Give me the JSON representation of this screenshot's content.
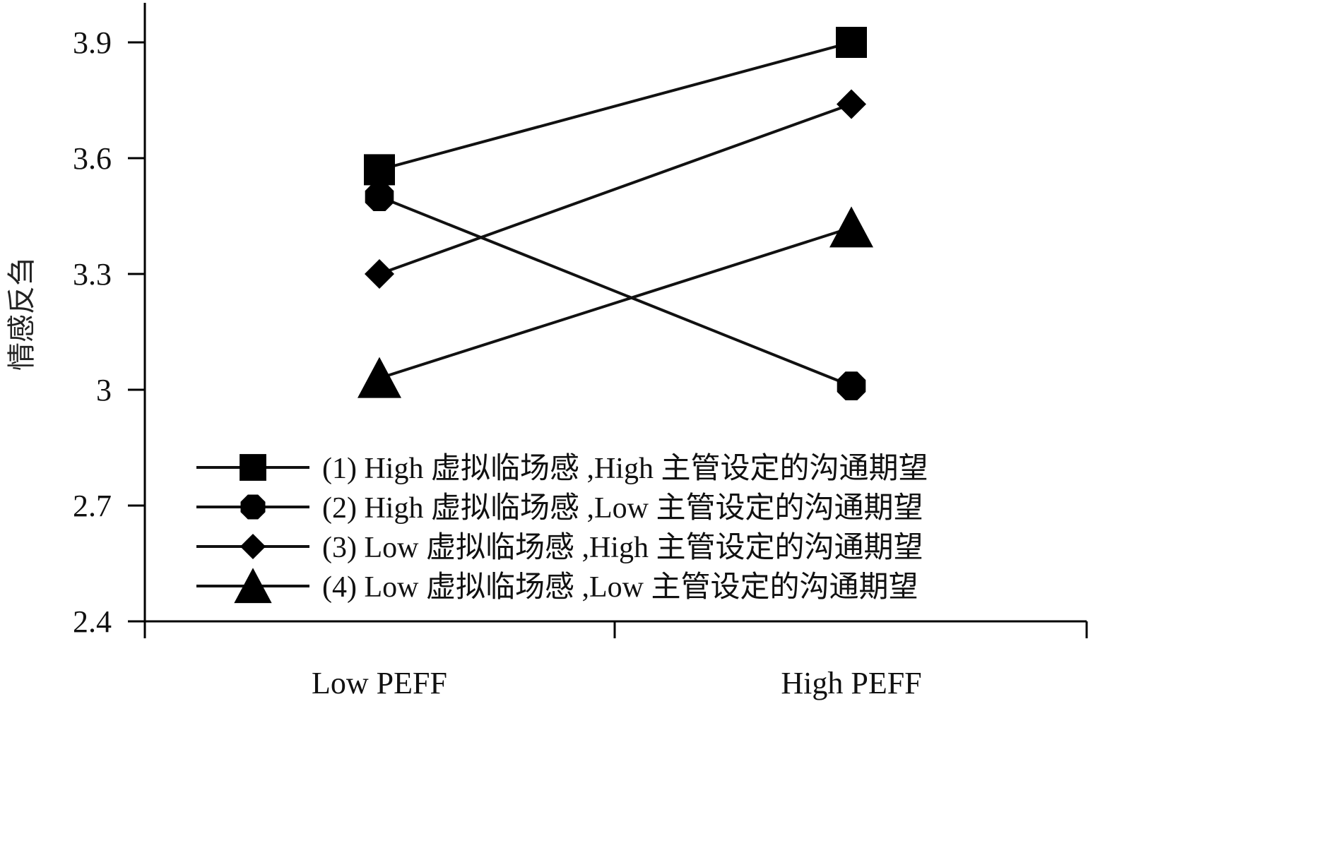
{
  "chart_data": {
    "type": "line",
    "title": "",
    "xlabel": "",
    "ylabel": "情感反刍",
    "categories": [
      "Low PEFF",
      "High PEFF"
    ],
    "y_ticks": [
      "2.4",
      "2.7",
      "3",
      "3.3",
      "3.6",
      "3.9"
    ],
    "ylim": [
      2.4,
      4.0
    ],
    "grid": false,
    "legend_position": "bottom-right",
    "series": [
      {
        "name": "(1) High 虚拟临场感 ,High 主管设定的沟通期望",
        "marker": "square",
        "values": [
          3.57,
          3.9
        ]
      },
      {
        "name": "(2) High 虚拟临场感 ,Low 主管设定的沟通期望",
        "marker": "octagon",
        "values": [
          3.5,
          3.01
        ]
      },
      {
        "name": "(3) Low 虚拟临场感 ,High 主管设定的沟通期望",
        "marker": "diamond",
        "values": [
          3.3,
          3.74
        ]
      },
      {
        "name": "(4) Low 虚拟临场感 ,Low 主管设定的沟通期望",
        "marker": "triangle",
        "values": [
          3.03,
          3.42
        ]
      }
    ],
    "colors": {
      "line": "#111111",
      "marker": "#000000"
    }
  }
}
